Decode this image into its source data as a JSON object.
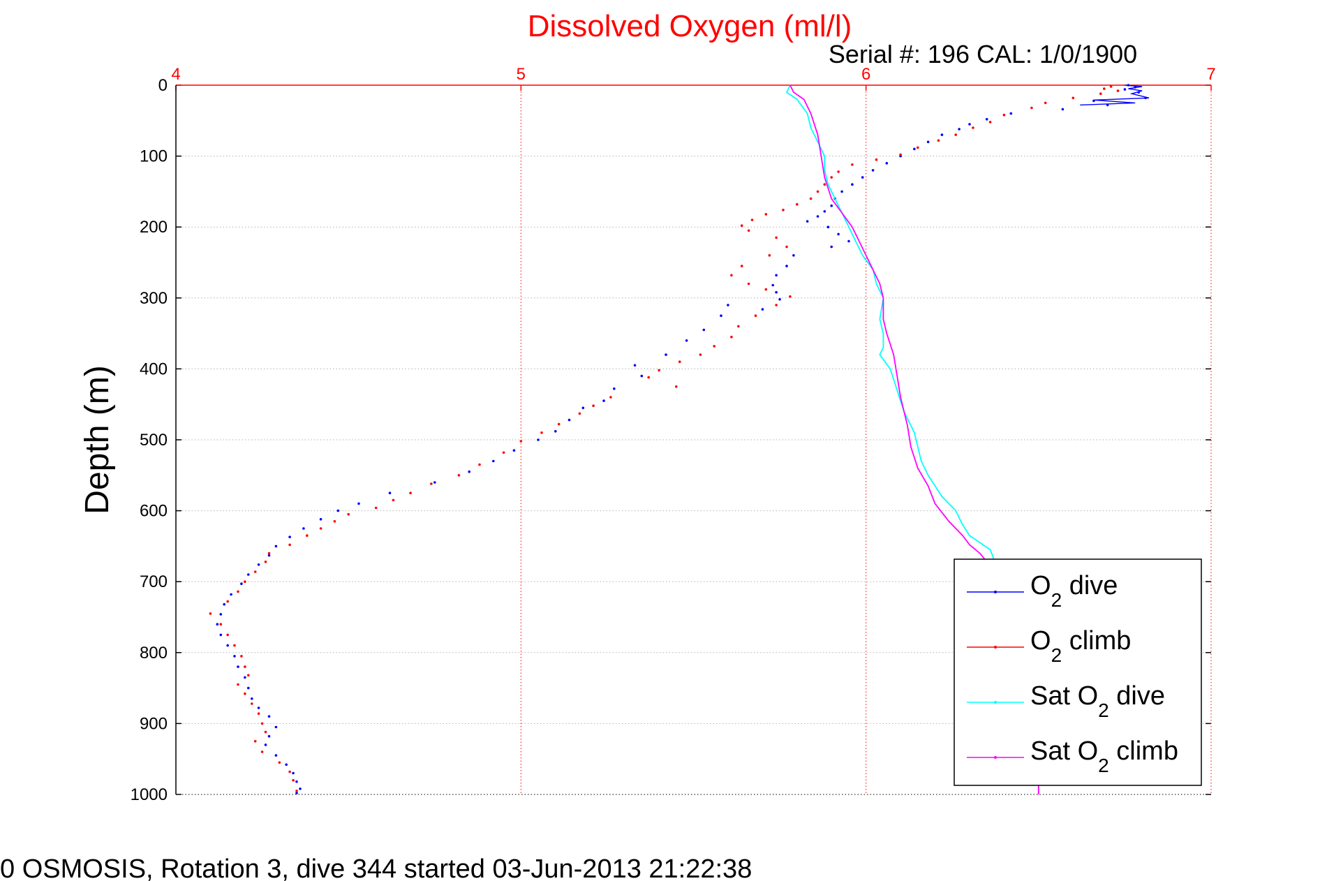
{
  "chart_data": {
    "type": "scatter",
    "title": "Dissolved Oxygen (ml/l)",
    "subtitle": "Serial #: 196  CAL: 1/0/1900",
    "ylabel": "Depth (m)",
    "footer": "0 OSMOSIS, Rotation 3, dive 344 started 03-Jun-2013 21:22:38",
    "xlim": [
      4,
      7
    ],
    "ylim": [
      0,
      1000
    ],
    "y_reversed": true,
    "x_axis_position": "top",
    "x_ticks": [
      "4",
      "5",
      "6",
      "7"
    ],
    "y_ticks": [
      "0",
      "100",
      "200",
      "300",
      "400",
      "500",
      "600",
      "700",
      "800",
      "900",
      "1000"
    ],
    "grid": true,
    "legend_placement": "bottom-right",
    "colors": {
      "title": "#ff0000",
      "x_axis": "#ff0000",
      "grid": "#b0b0b0",
      "o2_dive": "#0000ff",
      "o2_climb": "#ff0000",
      "sat_dive": "#00ffff",
      "sat_climb": "#ff00ff"
    },
    "series": [
      {
        "name": "O2 dive",
        "legend_main": "O",
        "legend_sub": "2",
        "legend_tail": " dive",
        "style": "dots",
        "color": "#0000ff",
        "points": [
          [
            6.76,
            0
          ],
          [
            6.78,
            3
          ],
          [
            6.75,
            6
          ],
          [
            6.79,
            10
          ],
          [
            6.81,
            18
          ],
          [
            6.66,
            22
          ],
          [
            6.7,
            28
          ],
          [
            6.57,
            34
          ],
          [
            6.42,
            40
          ],
          [
            6.35,
            48
          ],
          [
            6.3,
            55
          ],
          [
            6.27,
            62
          ],
          [
            6.22,
            70
          ],
          [
            6.18,
            80
          ],
          [
            6.14,
            90
          ],
          [
            6.1,
            100
          ],
          [
            6.06,
            110
          ],
          [
            6.02,
            120
          ],
          [
            5.99,
            130
          ],
          [
            5.96,
            140
          ],
          [
            5.93,
            150
          ],
          [
            5.91,
            160
          ],
          [
            5.9,
            170
          ],
          [
            5.88,
            178
          ],
          [
            5.86,
            185
          ],
          [
            5.83,
            192
          ],
          [
            5.89,
            200
          ],
          [
            5.92,
            210
          ],
          [
            5.95,
            220
          ],
          [
            5.9,
            228
          ],
          [
            5.79,
            240
          ],
          [
            5.77,
            255
          ],
          [
            5.74,
            268
          ],
          [
            5.73,
            282
          ],
          [
            5.74,
            292
          ],
          [
            5.75,
            302
          ],
          [
            5.7,
            316
          ],
          [
            5.6,
            310
          ],
          [
            5.58,
            325
          ],
          [
            5.53,
            345
          ],
          [
            5.48,
            360
          ],
          [
            5.42,
            380
          ],
          [
            5.33,
            395
          ],
          [
            5.35,
            410
          ],
          [
            5.27,
            428
          ],
          [
            5.24,
            445
          ],
          [
            5.18,
            455
          ],
          [
            5.14,
            472
          ],
          [
            5.1,
            488
          ],
          [
            5.05,
            500
          ],
          [
            4.98,
            515
          ],
          [
            4.92,
            530
          ],
          [
            4.85,
            545
          ],
          [
            4.75,
            560
          ],
          [
            4.62,
            575
          ],
          [
            4.53,
            590
          ],
          [
            4.47,
            600
          ],
          [
            4.42,
            612
          ],
          [
            4.37,
            625
          ],
          [
            4.33,
            637
          ],
          [
            4.29,
            650
          ],
          [
            4.27,
            663
          ],
          [
            4.24,
            676
          ],
          [
            4.21,
            690
          ],
          [
            4.19,
            703
          ],
          [
            4.16,
            718
          ],
          [
            4.14,
            732
          ],
          [
            4.13,
            746
          ],
          [
            4.12,
            760
          ],
          [
            4.13,
            775
          ],
          [
            4.15,
            790
          ],
          [
            4.17,
            805
          ],
          [
            4.18,
            820
          ],
          [
            4.2,
            835
          ],
          [
            4.21,
            850
          ],
          [
            4.22,
            865
          ],
          [
            4.24,
            878
          ],
          [
            4.27,
            890
          ],
          [
            4.29,
            905
          ],
          [
            4.27,
            918
          ],
          [
            4.26,
            930
          ],
          [
            4.29,
            945
          ],
          [
            4.32,
            958
          ],
          [
            4.34,
            970
          ],
          [
            4.35,
            982
          ],
          [
            4.36,
            992
          ],
          [
            4.35,
            998
          ]
        ],
        "surface_line": [
          [
            6.75,
            0
          ],
          [
            6.8,
            2
          ],
          [
            6.76,
            5
          ],
          [
            6.8,
            8
          ],
          [
            6.77,
            12
          ],
          [
            6.82,
            18
          ],
          [
            6.66,
            21
          ],
          [
            6.78,
            25
          ],
          [
            6.62,
            28
          ]
        ]
      },
      {
        "name": "O2 climb",
        "legend_main": "O",
        "legend_sub": "2",
        "legend_tail": " climb",
        "style": "dots",
        "color": "#ff0000",
        "points": [
          [
            6.71,
            2
          ],
          [
            6.69,
            5
          ],
          [
            6.73,
            8
          ],
          [
            6.68,
            12
          ],
          [
            6.6,
            18
          ],
          [
            6.52,
            25
          ],
          [
            6.48,
            32
          ],
          [
            6.4,
            42
          ],
          [
            6.36,
            52
          ],
          [
            6.31,
            60
          ],
          [
            6.26,
            70
          ],
          [
            6.21,
            78
          ],
          [
            6.15,
            88
          ],
          [
            6.1,
            98
          ],
          [
            6.03,
            105
          ],
          [
            5.96,
            112
          ],
          [
            5.92,
            122
          ],
          [
            5.9,
            130
          ],
          [
            5.88,
            140
          ],
          [
            5.86,
            150
          ],
          [
            5.84,
            160
          ],
          [
            5.8,
            168
          ],
          [
            5.76,
            176
          ],
          [
            5.71,
            182
          ],
          [
            5.67,
            190
          ],
          [
            5.64,
            198
          ],
          [
            5.66,
            205
          ],
          [
            5.74,
            215
          ],
          [
            5.77,
            228
          ],
          [
            5.72,
            240
          ],
          [
            5.64,
            255
          ],
          [
            5.61,
            268
          ],
          [
            5.66,
            280
          ],
          [
            5.71,
            288
          ],
          [
            5.78,
            298
          ],
          [
            5.74,
            310
          ],
          [
            5.68,
            325
          ],
          [
            5.63,
            340
          ],
          [
            5.61,
            355
          ],
          [
            5.56,
            368
          ],
          [
            5.52,
            380
          ],
          [
            5.46,
            390
          ],
          [
            5.4,
            402
          ],
          [
            5.37,
            412
          ],
          [
            5.45,
            425
          ],
          [
            5.26,
            440
          ],
          [
            5.21,
            452
          ],
          [
            5.17,
            463
          ],
          [
            5.11,
            478
          ],
          [
            5.06,
            490
          ],
          [
            5.0,
            502
          ],
          [
            4.95,
            518
          ],
          [
            4.88,
            535
          ],
          [
            4.82,
            550
          ],
          [
            4.74,
            562
          ],
          [
            4.68,
            575
          ],
          [
            4.63,
            585
          ],
          [
            4.58,
            596
          ],
          [
            4.5,
            605
          ],
          [
            4.46,
            615
          ],
          [
            4.42,
            625
          ],
          [
            4.38,
            635
          ],
          [
            4.33,
            648
          ],
          [
            4.27,
            660
          ],
          [
            4.26,
            672
          ],
          [
            4.23,
            686
          ],
          [
            4.2,
            700
          ],
          [
            4.18,
            714
          ],
          [
            4.15,
            728
          ],
          [
            4.1,
            745
          ],
          [
            4.13,
            760
          ],
          [
            4.15,
            775
          ],
          [
            4.17,
            790
          ],
          [
            4.19,
            805
          ],
          [
            4.2,
            820
          ],
          [
            4.21,
            832
          ],
          [
            4.18,
            845
          ],
          [
            4.2,
            858
          ],
          [
            4.22,
            872
          ],
          [
            4.24,
            886
          ],
          [
            4.25,
            900
          ],
          [
            4.26,
            912
          ],
          [
            4.23,
            925
          ],
          [
            4.25,
            940
          ],
          [
            4.3,
            955
          ],
          [
            4.33,
            968
          ],
          [
            4.34,
            980
          ],
          [
            4.35,
            995
          ]
        ]
      },
      {
        "name": "Sat O2 dive",
        "legend_main": "Sat O",
        "legend_sub": "2",
        "legend_tail": " dive",
        "style": "line",
        "color": "#00ffff",
        "points": [
          [
            5.78,
            0
          ],
          [
            5.77,
            10
          ],
          [
            5.8,
            20
          ],
          [
            5.83,
            40
          ],
          [
            5.84,
            60
          ],
          [
            5.86,
            80
          ],
          [
            5.88,
            100
          ],
          [
            5.88,
            120
          ],
          [
            5.89,
            140
          ],
          [
            5.91,
            160
          ],
          [
            5.93,
            180
          ],
          [
            5.95,
            200
          ],
          [
            5.97,
            220
          ],
          [
            5.99,
            240
          ],
          [
            6.02,
            260
          ],
          [
            6.03,
            280
          ],
          [
            6.05,
            300
          ],
          [
            6.04,
            330
          ],
          [
            6.05,
            350
          ],
          [
            6.05,
            370
          ],
          [
            6.04,
            380
          ],
          [
            6.07,
            400
          ],
          [
            6.09,
            430
          ],
          [
            6.11,
            460
          ],
          [
            6.14,
            490
          ],
          [
            6.15,
            510
          ],
          [
            6.16,
            530
          ],
          [
            6.18,
            550
          ],
          [
            6.2,
            565
          ],
          [
            6.22,
            580
          ],
          [
            6.26,
            600
          ],
          [
            6.28,
            620
          ],
          [
            6.3,
            635
          ],
          [
            6.33,
            645
          ],
          [
            6.36,
            655
          ],
          [
            6.37,
            668
          ],
          [
            6.38,
            680
          ],
          [
            6.45,
            720
          ],
          [
            6.5,
            780
          ],
          [
            6.53,
            860
          ],
          [
            6.5,
            920
          ],
          [
            6.5,
            960
          ],
          [
            6.5,
            1000
          ]
        ]
      },
      {
        "name": "Sat O2 climb",
        "legend_main": "Sat O",
        "legend_sub": "2",
        "legend_tail": " climb",
        "style": "line",
        "color": "#ff00ff",
        "points": [
          [
            5.78,
            0
          ],
          [
            5.79,
            10
          ],
          [
            5.82,
            20
          ],
          [
            5.84,
            40
          ],
          [
            5.86,
            70
          ],
          [
            5.87,
            100
          ],
          [
            5.88,
            130
          ],
          [
            5.9,
            160
          ],
          [
            5.93,
            180
          ],
          [
            5.96,
            200
          ],
          [
            5.98,
            220
          ],
          [
            6.01,
            250
          ],
          [
            6.04,
            280
          ],
          [
            6.05,
            300
          ],
          [
            6.05,
            330
          ],
          [
            6.06,
            350
          ],
          [
            6.08,
            380
          ],
          [
            6.09,
            410
          ],
          [
            6.1,
            440
          ],
          [
            6.12,
            480
          ],
          [
            6.13,
            510
          ],
          [
            6.15,
            540
          ],
          [
            6.18,
            565
          ],
          [
            6.2,
            590
          ],
          [
            6.24,
            615
          ],
          [
            6.28,
            635
          ],
          [
            6.3,
            648
          ],
          [
            6.33,
            660
          ],
          [
            6.38,
            690
          ],
          [
            6.43,
            740
          ],
          [
            6.47,
            800
          ],
          [
            6.49,
            860
          ],
          [
            6.5,
            920
          ],
          [
            6.5,
            970
          ],
          [
            6.5,
            1000
          ]
        ]
      }
    ]
  }
}
